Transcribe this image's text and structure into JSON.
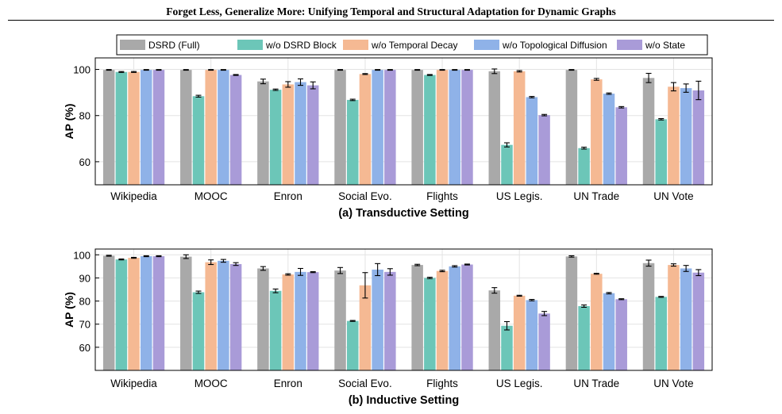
{
  "paper": {
    "running_title": "Forget Less, Generalize More: Unifying Temporal and Structural Adaptation for Dynamic Graphs"
  },
  "legend": {
    "entries": [
      "DSRD (Full)",
      "w/o DSRD Block",
      "w/o Temporal Decay",
      "w/o Topological Diffusion",
      "w/o State"
    ],
    "colors": [
      "#a9a9a9",
      "#6cc6b8",
      "#f5b993",
      "#8fb2e8",
      "#a99bd8"
    ]
  },
  "chart_data": [
    {
      "type": "bar",
      "caption": "(a) Transductive Setting",
      "ylabel": "AP (%)",
      "ylim": [
        50,
        105
      ],
      "yticks": [
        60,
        80,
        100
      ],
      "grid": true,
      "categories": [
        "Wikipedia",
        "MOOC",
        "Enron",
        "Social Evo.",
        "Flights",
        "US Legis.",
        "UN Trade",
        "UN Vote"
      ],
      "series": [
        {
          "name": "DSRD (Full)",
          "values": [
            99.8,
            99.8,
            94.8,
            99.8,
            99.8,
            99.2,
            99.8,
            96.3
          ],
          "errors": [
            0.15,
            0.15,
            1.0,
            0.15,
            0.15,
            1.0,
            0.15,
            2.0
          ]
        },
        {
          "name": "w/o DSRD Block",
          "values": [
            98.9,
            88.4,
            91.2,
            86.8,
            97.6,
            67.3,
            65.9,
            78.4
          ],
          "errors": [
            0.2,
            0.4,
            0.3,
            0.3,
            0.2,
            0.9,
            0.4,
            0.3
          ]
        },
        {
          "name": "w/o Temporal Decay",
          "values": [
            98.9,
            99.8,
            93.5,
            98.0,
            99.8,
            99.2,
            95.7,
            92.5
          ],
          "errors": [
            0.2,
            0.15,
            1.2,
            0.2,
            0.15,
            0.3,
            0.4,
            1.8
          ]
        },
        {
          "name": "w/o Topological Diffusion",
          "values": [
            99.8,
            99.8,
            94.5,
            99.8,
            99.8,
            88.0,
            89.5,
            91.9
          ],
          "errors": [
            0.15,
            0.15,
            1.4,
            0.15,
            0.15,
            0.3,
            0.3,
            1.8
          ]
        },
        {
          "name": "w/o State",
          "values": [
            99.8,
            97.6,
            93.1,
            99.8,
            99.8,
            80.2,
            83.6,
            90.9
          ],
          "errors": [
            0.15,
            0.2,
            1.5,
            0.15,
            0.15,
            0.3,
            0.3,
            4.0
          ]
        }
      ]
    },
    {
      "type": "bar",
      "caption": "(b) Inductive Setting",
      "ylabel": "AP (%)",
      "ylim": [
        50,
        102.5
      ],
      "yticks": [
        60,
        70,
        80,
        90,
        100
      ],
      "grid": true,
      "categories": [
        "Wikipedia",
        "MOOC",
        "Enron",
        "Social Evo.",
        "Flights",
        "US Legis.",
        "UN Trade",
        "UN Vote"
      ],
      "series": [
        {
          "name": "DSRD (Full)",
          "values": [
            99.6,
            99.2,
            94.1,
            93.2,
            95.6,
            84.6,
            99.3,
            96.4
          ],
          "errors": [
            0.2,
            0.8,
            0.8,
            1.3,
            0.3,
            1.2,
            0.3,
            1.3
          ]
        },
        {
          "name": "w/o DSRD Block",
          "values": [
            98.0,
            83.8,
            84.4,
            71.4,
            90.0,
            69.3,
            77.8,
            81.8
          ],
          "errors": [
            0.2,
            0.5,
            0.8,
            0.2,
            0.3,
            1.8,
            0.5,
            0.2
          ]
        },
        {
          "name": "w/o Temporal Decay",
          "values": [
            98.7,
            96.8,
            91.5,
            86.8,
            93.0,
            82.3,
            91.8,
            95.6
          ],
          "errors": [
            0.2,
            1.0,
            0.3,
            5.5,
            0.3,
            0.2,
            0.2,
            0.5
          ]
        },
        {
          "name": "w/o Topological Diffusion",
          "values": [
            99.4,
            97.4,
            92.6,
            93.6,
            95.0,
            80.4,
            83.4,
            94.1
          ],
          "errors": [
            0.2,
            0.6,
            1.5,
            2.6,
            0.3,
            0.3,
            0.3,
            1.3
          ]
        },
        {
          "name": "w/o State",
          "values": [
            99.4,
            96.0,
            92.5,
            92.6,
            95.8,
            74.6,
            80.8,
            92.3
          ],
          "errors": [
            0.2,
            0.6,
            0.2,
            1.4,
            0.2,
            0.9,
            0.2,
            1.3
          ]
        }
      ]
    }
  ]
}
